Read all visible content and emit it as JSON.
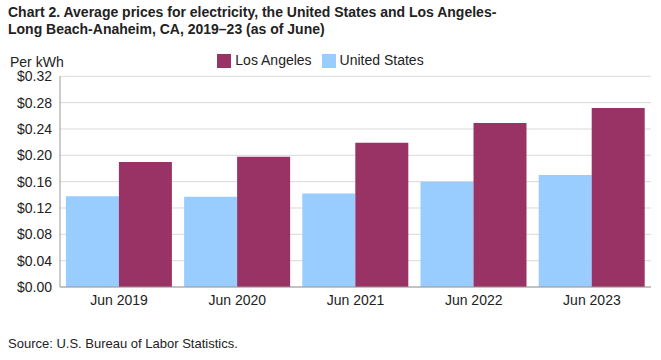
{
  "chart_data": {
    "type": "bar",
    "title": "Chart 2. Average prices for electricity, the United States and Los Angeles-Long Beach-Anaheim, CA, 2019–23 (as of June)",
    "y_label": "Per kWh",
    "source": "Source: U.S. Bureau of Labor Statistics.",
    "categories": [
      "Jun 2019",
      "Jun 2020",
      "Jun 2021",
      "Jun 2022",
      "Jun 2023"
    ],
    "series": [
      {
        "name": "United States",
        "color": "#99ccff",
        "values": [
          0.138,
          0.137,
          0.142,
          0.16,
          0.17
        ]
      },
      {
        "name": "Los Angeles",
        "color": "#993366",
        "values": [
          0.19,
          0.198,
          0.219,
          0.249,
          0.272
        ]
      }
    ],
    "ylim": [
      0,
      0.32
    ],
    "yticks": [
      {
        "value": 0,
        "label": "$0.00"
      },
      {
        "value": 0.04,
        "label": "$0.04"
      },
      {
        "value": 0.08,
        "label": "$0.08"
      },
      {
        "value": 0.12,
        "label": "$0.12"
      },
      {
        "value": 0.16,
        "label": "$0.16"
      },
      {
        "value": 0.2,
        "label": "$0.20"
      },
      {
        "value": 0.24,
        "label": "$0.24"
      },
      {
        "value": 0.28,
        "label": "$0.28"
      },
      {
        "value": 0.32,
        "label": "$0.32"
      }
    ],
    "grid": true,
    "legend": "top"
  }
}
